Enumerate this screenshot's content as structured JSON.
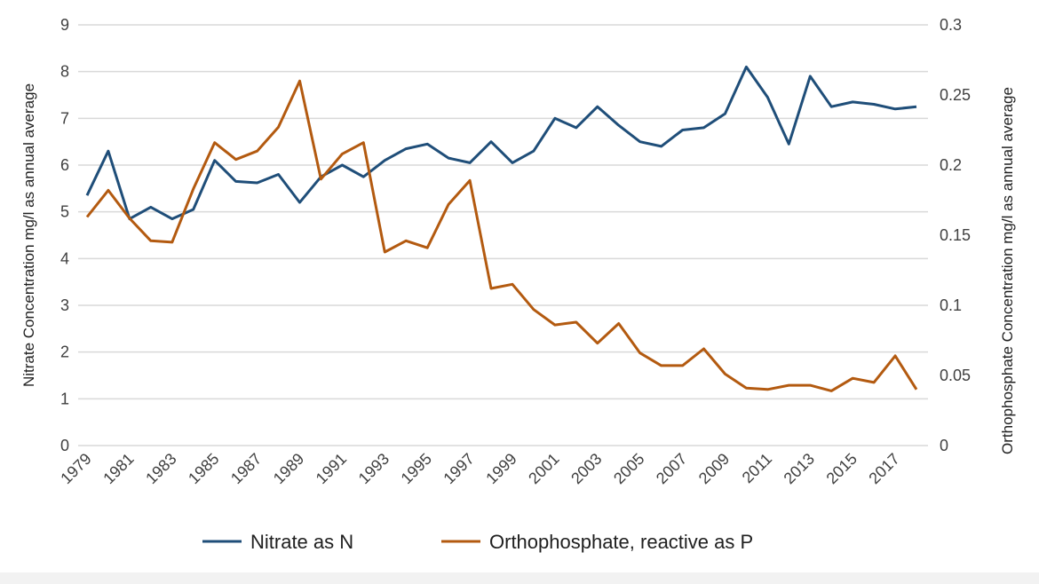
{
  "chart_data": {
    "type": "line",
    "title": "",
    "xlabel": "",
    "ylabel": "Nitrate Concentration mg/l as annual average",
    "ylabel_right": "Orthophosphate Concentration mg/l as annual average",
    "ylim": [
      0,
      9
    ],
    "ylim_right": [
      0,
      0.3
    ],
    "yticks": [
      "0",
      "1",
      "2",
      "3",
      "4",
      "5",
      "6",
      "7",
      "8",
      "9"
    ],
    "yticks_right": [
      "0",
      "0.05",
      "0.1",
      "0.15",
      "0.2",
      "0.25",
      "0.3"
    ],
    "xtick_labels": [
      "1979",
      "1981",
      "1983",
      "1985",
      "1987",
      "1989",
      "1991",
      "1993",
      "1995",
      "1997",
      "1999",
      "2001",
      "2003",
      "2005",
      "2007",
      "2009",
      "2011",
      "2013",
      "2015",
      "2017"
    ],
    "grid": true,
    "legend_position": "bottom",
    "x": [
      1979,
      1980,
      1981,
      1982,
      1983,
      1984,
      1985,
      1986,
      1987,
      1988,
      1989,
      1990,
      1991,
      1992,
      1993,
      1994,
      1995,
      1996,
      1997,
      1998,
      1999,
      2000,
      2001,
      2002,
      2003,
      2004,
      2005,
      2006,
      2007,
      2008,
      2009,
      2010,
      2011,
      2012,
      2013,
      2014,
      2015,
      2016,
      2017,
      2018
    ],
    "series": [
      {
        "name": "Nitrate as N",
        "axis": "left",
        "color": "#1f4e79",
        "values": [
          5.35,
          6.3,
          4.85,
          5.1,
          4.85,
          5.05,
          6.1,
          5.65,
          5.62,
          5.8,
          5.2,
          5.75,
          6.0,
          5.75,
          6.1,
          6.35,
          6.45,
          6.15,
          6.05,
          6.5,
          6.05,
          6.3,
          7.0,
          6.8,
          7.25,
          6.85,
          6.5,
          6.4,
          6.75,
          6.8,
          7.1,
          8.1,
          7.45,
          6.45,
          7.9,
          7.25,
          7.35,
          7.3,
          7.2,
          7.25
        ]
      },
      {
        "name": "Orthophosphate, reactive as P",
        "axis": "right",
        "color": "#b35a10",
        "values": [
          0.163,
          0.182,
          0.162,
          0.146,
          0.145,
          0.183,
          0.216,
          0.204,
          0.21,
          0.227,
          0.26,
          0.19,
          0.208,
          0.216,
          0.138,
          0.146,
          0.141,
          0.172,
          0.189,
          0.112,
          0.115,
          0.097,
          0.086,
          0.088,
          0.073,
          0.087,
          0.066,
          0.057,
          0.057,
          0.069,
          0.051,
          0.041,
          0.04,
          0.043,
          0.043,
          0.039,
          0.048,
          0.045,
          0.064,
          0.04
        ]
      }
    ]
  }
}
